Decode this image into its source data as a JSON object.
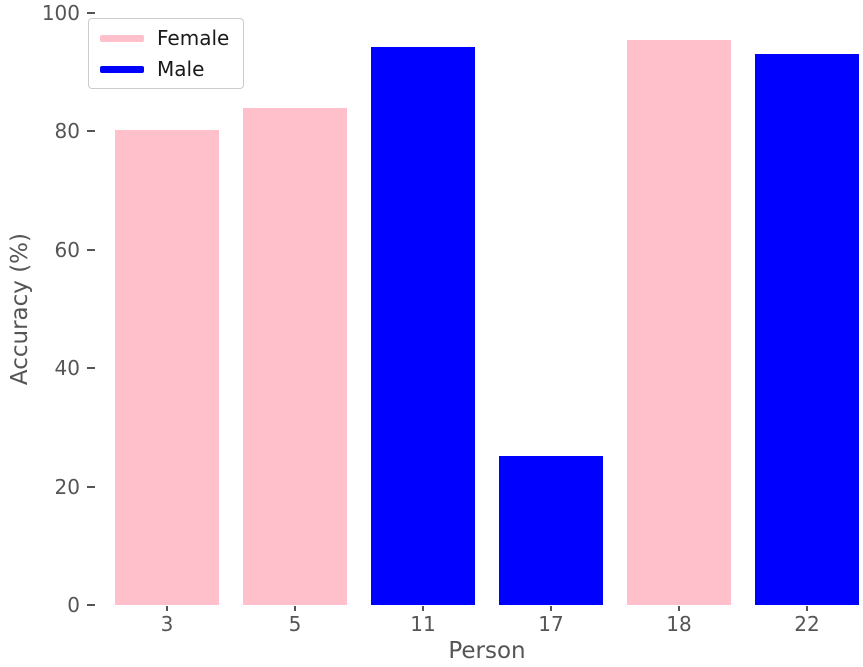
{
  "chart_data": {
    "type": "bar",
    "title": "",
    "xlabel": "Person",
    "ylabel": "Accuracy (%)",
    "ylim": [
      0,
      100
    ],
    "yticks": [
      0,
      20,
      40,
      60,
      80,
      100
    ],
    "grid": false,
    "background": "#ffffff",
    "categories": [
      "3",
      "5",
      "11",
      "17",
      "18",
      "22"
    ],
    "values": [
      80.3,
      83.9,
      94.3,
      25.2,
      95.4,
      93.0
    ],
    "groups": [
      "Female",
      "Female",
      "Male",
      "Male",
      "Female",
      "Male"
    ],
    "legend": {
      "position": "upper left",
      "entries": [
        {
          "label": "Female",
          "color": "#ffc0cb"
        },
        {
          "label": "Male",
          "color": "#0000ff"
        }
      ]
    },
    "colors": {
      "tick_text": "#555555",
      "axis_label_text": "#555555",
      "legend_text": "#1a1a1a",
      "legend_border": "#cccccc"
    }
  }
}
